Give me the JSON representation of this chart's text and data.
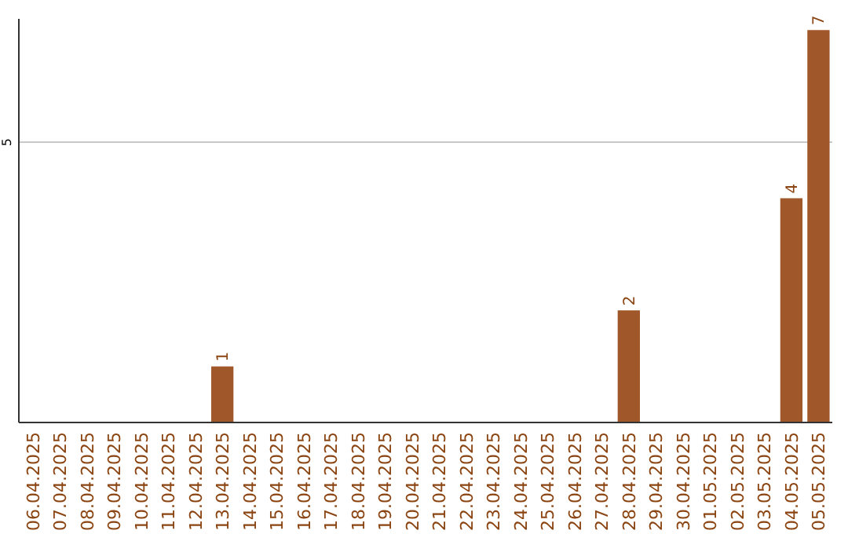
{
  "chart_data": {
    "type": "bar",
    "categories": [
      "06.04.2025",
      "07.04.2025",
      "08.04.2025",
      "09.04.2025",
      "10.04.2025",
      "11.04.2025",
      "12.04.2025",
      "13.04.2025",
      "14.04.2025",
      "15.04.2025",
      "16.04.2025",
      "17.04.2025",
      "18.04.2025",
      "19.04.2025",
      "20.04.2025",
      "21.04.2025",
      "22.04.2025",
      "23.04.2025",
      "24.04.2025",
      "25.04.2025",
      "26.04.2025",
      "27.04.2025",
      "28.04.2025",
      "29.04.2025",
      "30.04.2025",
      "01.05.2025",
      "02.05.2025",
      "03.05.2025",
      "04.05.2025",
      "05.05.2025"
    ],
    "values": [
      0,
      0,
      0,
      0,
      0,
      0,
      0,
      1,
      0,
      0,
      0,
      0,
      0,
      0,
      0,
      0,
      0,
      0,
      0,
      0,
      0,
      0,
      2,
      0,
      0,
      0,
      0,
      0,
      4,
      7
    ],
    "color": "#a0582a",
    "value_labels": [
      null,
      null,
      null,
      null,
      null,
      null,
      null,
      "1",
      null,
      null,
      null,
      null,
      null,
      null,
      null,
      null,
      null,
      null,
      null,
      null,
      null,
      null,
      "2",
      null,
      null,
      null,
      null,
      null,
      "4",
      "7"
    ],
    "ylim": [
      0,
      7.2
    ],
    "yticks": [
      5
    ],
    "grid": "y"
  }
}
